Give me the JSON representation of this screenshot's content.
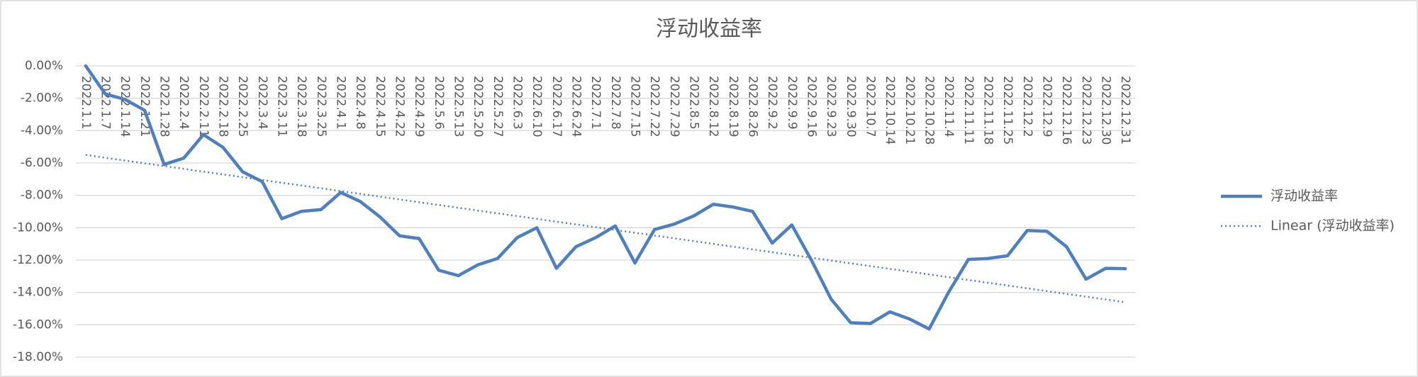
{
  "chart_data": {
    "type": "line",
    "title": "浮动收益率",
    "categories": [
      "2022.1.1",
      "2022.1.7",
      "2022.1.14",
      "2022.1.21",
      "2022.1.28",
      "2022.2.4",
      "2022.2.11",
      "2022.2.18",
      "2022.2.25",
      "2022.3.4",
      "2022.3.11",
      "2022.3.18",
      "2022.3.25",
      "2022.4.1",
      "2022.4.8",
      "2022.4.15",
      "2022.4.22",
      "2022.4.29",
      "2022.5.6",
      "2022.5.13",
      "2022.5.20",
      "2022.5.27",
      "2022.6.3",
      "2022.6.10",
      "2022.6.17",
      "2022.6.24",
      "2022.7.1",
      "2022.7.8",
      "2022.7.15",
      "2022.7.22",
      "2022.7.29",
      "2022.8.5",
      "2022.8.12",
      "2022.8.19",
      "2022.8.26",
      "2022.9.2",
      "2022.9.9",
      "2022.9.16",
      "2022.9.23",
      "2022.9.30",
      "2022.10.7",
      "2022.10.14",
      "2022.10.21",
      "2022.10.28",
      "2022.11.4",
      "2022.11.11",
      "2022.11.18",
      "2022.11.25",
      "2022.12.2",
      "2022.12.9",
      "2022.12.16",
      "2022.12.23",
      "2022.12.30",
      "2022.12.31"
    ],
    "series": [
      {
        "name": "浮动收益率",
        "color": "#4e7fbf",
        "values": [
          0,
          -1.73,
          -2.07,
          -2.74,
          -6.09,
          -5.7,
          -4.25,
          -5.03,
          -6.54,
          -7.15,
          -9.44,
          -8.99,
          -8.88,
          -7.82,
          -8.38,
          -9.33,
          -10.5,
          -10.67,
          -12.63,
          -12.96,
          -12.29,
          -11.9,
          -10.61,
          -10.0,
          -12.51,
          -11.17,
          -10.61,
          -9.89,
          -12.18,
          -10.11,
          -9.78,
          -9.27,
          -8.55,
          -8.72,
          -8.99,
          -10.95,
          -9.83,
          -12.01,
          -14.41,
          -15.87,
          -15.92,
          -15.2,
          -15.64,
          -16.26,
          -13.97,
          -11.96,
          -11.9,
          -11.73,
          -10.17,
          -10.22,
          -11.17,
          -13.18,
          -12.51,
          -12.53
        ]
      }
    ],
    "trendline": {
      "name": "Linear (浮动收益率)",
      "color": "#4e7fbf"
    },
    "ylim": [
      -18,
      0
    ],
    "yticks": [
      {
        "value": 0,
        "label": "0.00%"
      },
      {
        "value": -2,
        "label": "-2.00%"
      },
      {
        "value": -4,
        "label": "-4.00%"
      },
      {
        "value": -6,
        "label": "-6.00%"
      },
      {
        "value": -8,
        "label": "-8.00%"
      },
      {
        "value": -10,
        "label": "-10.00%"
      },
      {
        "value": -12,
        "label": "-12.00%"
      },
      {
        "value": -14,
        "label": "-14.00%"
      },
      {
        "value": -16,
        "label": "-16.00%"
      },
      {
        "value": -18,
        "label": "-18.00%"
      }
    ],
    "grid": true
  }
}
